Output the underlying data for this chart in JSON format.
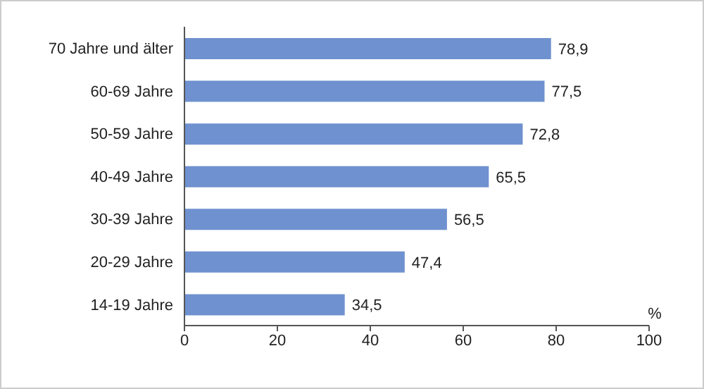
{
  "chart_data": {
    "type": "bar",
    "orientation": "horizontal",
    "xlabel": "%",
    "categories": [
      "70 Jahre und älter",
      "60-69 Jahre",
      "50-59 Jahre",
      "40-49 Jahre",
      "30-39 Jahre",
      "20-29 Jahre",
      "14-19 Jahre"
    ],
    "values": [
      78.9,
      77.5,
      72.8,
      65.5,
      56.5,
      47.4,
      34.5
    ],
    "value_labels": [
      "78,9",
      "77,5",
      "72,8",
      "65,5",
      "56,5",
      "47,4",
      "34,5"
    ],
    "color": "#6f91cf",
    "xlim": [
      0,
      100
    ],
    "xticks": [
      0,
      20,
      40,
      60,
      80,
      100
    ],
    "grid": false,
    "legend": false
  }
}
